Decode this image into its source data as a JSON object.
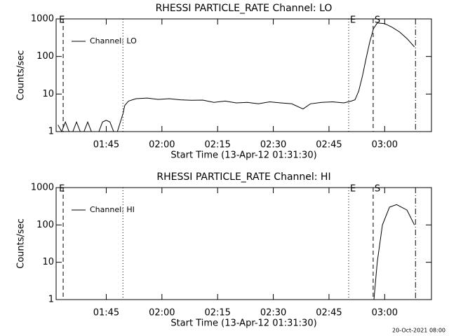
{
  "chart_data": [
    {
      "type": "line",
      "title": "RHESSI PARTICLE_RATE Channel: LO",
      "xlabel": "Start Time (13-Apr-12 01:31:30)",
      "ylabel": "Counts/sec",
      "x": [
        92,
        93,
        94,
        95,
        96,
        97,
        98,
        99,
        100,
        101,
        102,
        103,
        104,
        105,
        106,
        107,
        108,
        109.5,
        110,
        111,
        113,
        116,
        119,
        122,
        125,
        128,
        131,
        134,
        137,
        140,
        143,
        146,
        149,
        152,
        155,
        158,
        160,
        163,
        166,
        169,
        171,
        172,
        173,
        174,
        175,
        176,
        177,
        178,
        180,
        182,
        184,
        186,
        188
      ],
      "series": [
        {
          "name": "Channel: LO",
          "color": "#000000",
          "values": [
            1.5,
            1,
            1.8,
            1,
            1,
            1.8,
            1,
            1,
            1.8,
            1,
            1,
            1,
            1.8,
            2,
            1.8,
            1,
            1,
            3,
            5,
            6.5,
            7.5,
            7.8,
            7.2,
            7.5,
            7.0,
            6.8,
            6.9,
            6.0,
            6.5,
            5.8,
            6.0,
            5.5,
            6.2,
            5.8,
            5.5,
            4,
            5.5,
            6.0,
            6.2,
            5.8,
            6.5,
            7,
            12,
            30,
            90,
            250,
            550,
            780,
            750,
            600,
            450,
            300,
            180
          ]
        }
      ],
      "xlim": [
        91.5,
        192.6
      ],
      "ylim": [
        1,
        1000
      ],
      "log_y": true,
      "legend": "upper left",
      "xticks": [
        {
          "value": 105,
          "label": "01:45"
        },
        {
          "value": 120,
          "label": "02:00"
        },
        {
          "value": 135,
          "label": "02:15"
        },
        {
          "value": 150,
          "label": "02:30"
        },
        {
          "value": 165,
          "label": "02:45"
        },
        {
          "value": 180,
          "label": "03:00"
        }
      ],
      "yticks": [
        1,
        10,
        100,
        1000
      ],
      "markers": [
        {
          "x": 93.4,
          "style": "dashed"
        },
        {
          "x": 109.5,
          "style": "dotted"
        },
        {
          "x": 170.3,
          "style": "dotted"
        },
        {
          "x": 176.9,
          "style": "dashed"
        },
        {
          "x": 188.3,
          "style": "dashdot"
        }
      ],
      "annotations": [
        {
          "text": "E",
          "x": 91.9
        },
        {
          "text": "E",
          "x": 170.3
        },
        {
          "text": "S",
          "x": 176.9
        }
      ]
    },
    {
      "type": "line",
      "title": "RHESSI PARTICLE_RATE Channel: HI",
      "xlabel": "Start Time (13-Apr-12 01:31:30)",
      "ylabel": "Counts/sec",
      "x": [
        177.1,
        178,
        179.4,
        181.3,
        183.2,
        186,
        188
      ],
      "series": [
        {
          "name": "Channel: HI",
          "color": "#000000",
          "values": [
            1,
            10,
            100,
            300,
            350,
            250,
            100
          ]
        }
      ],
      "xlim": [
        91.5,
        192.6
      ],
      "ylim": [
        1,
        1000
      ],
      "log_y": true,
      "legend": "upper left",
      "xticks": [
        {
          "value": 105,
          "label": "01:45"
        },
        {
          "value": 120,
          "label": "02:00"
        },
        {
          "value": 135,
          "label": "02:15"
        },
        {
          "value": 150,
          "label": "02:30"
        },
        {
          "value": 165,
          "label": "02:45"
        },
        {
          "value": 180,
          "label": "03:00"
        }
      ],
      "yticks": [
        1,
        10,
        100,
        1000
      ],
      "markers": [
        {
          "x": 93.4,
          "style": "dashed"
        },
        {
          "x": 109.5,
          "style": "dotted"
        },
        {
          "x": 170.3,
          "style": "dotted"
        },
        {
          "x": 176.9,
          "style": "dashed"
        },
        {
          "x": 188.3,
          "style": "dashdot"
        }
      ],
      "annotations": [
        {
          "text": "E",
          "x": 91.9
        },
        {
          "text": "E",
          "x": 170.3
        },
        {
          "text": "S",
          "x": 176.9
        }
      ]
    }
  ],
  "footer": "20-Oct-2021 08:00"
}
